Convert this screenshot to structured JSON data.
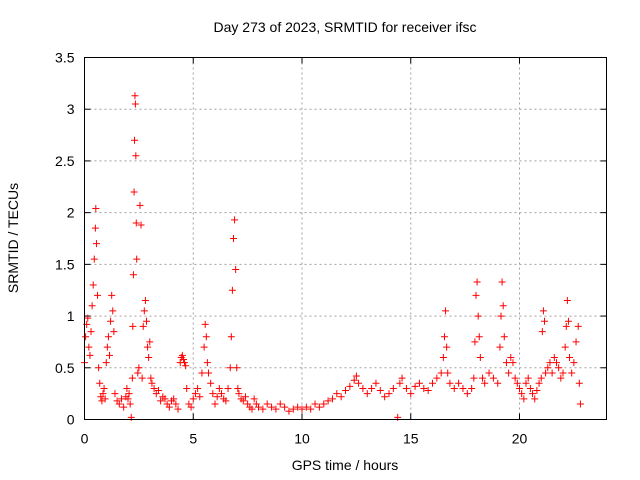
{
  "chart_data": {
    "type": "scatter",
    "title": "Day 273 of 2023, SRMTID for receiver ifsc",
    "xlabel": "GPS time / hours",
    "ylabel": "SRMTID / TECUs",
    "xlim": [
      0,
      24
    ],
    "ylim": [
      0,
      3.5
    ],
    "x_ticks": [
      0,
      5,
      10,
      15,
      20
    ],
    "x_tick_labels": [
      "0",
      "5",
      "10",
      "15",
      "20"
    ],
    "y_ticks": [
      0,
      0.5,
      1,
      1.5,
      2,
      2.5,
      3,
      3.5
    ],
    "y_tick_labels": [
      "0",
      "0.5",
      "1",
      "1.5",
      "2",
      "2.5",
      "3",
      "3.5"
    ],
    "grid": true,
    "marker": "+",
    "color": "#ff0000",
    "series": [
      {
        "name": "SRMTID",
        "points": [
          [
            0.0,
            0.55
          ],
          [
            0.05,
            0.8
          ],
          [
            0.1,
            0.92
          ],
          [
            0.15,
            0.98
          ],
          [
            0.2,
            0.7
          ],
          [
            0.25,
            0.62
          ],
          [
            0.3,
            0.85
          ],
          [
            0.35,
            1.1
          ],
          [
            0.4,
            1.3
          ],
          [
            0.45,
            1.55
          ],
          [
            0.5,
            1.85
          ],
          [
            0.52,
            2.04
          ],
          [
            0.55,
            1.7
          ],
          [
            0.6,
            1.2
          ],
          [
            0.65,
            0.5
          ],
          [
            0.7,
            0.35
          ],
          [
            0.75,
            0.22
          ],
          [
            0.8,
            0.18
          ],
          [
            0.85,
            0.25
          ],
          [
            0.9,
            0.3
          ],
          [
            0.95,
            0.2
          ],
          [
            1.0,
            0.55
          ],
          [
            1.05,
            0.7
          ],
          [
            1.1,
            0.8
          ],
          [
            1.15,
            0.62
          ],
          [
            1.2,
            0.95
          ],
          [
            1.25,
            1.2
          ],
          [
            1.3,
            1.05
          ],
          [
            1.35,
            0.85
          ],
          [
            1.4,
            0.25
          ],
          [
            1.5,
            0.18
          ],
          [
            1.6,
            0.15
          ],
          [
            1.7,
            0.2
          ],
          [
            1.8,
            0.12
          ],
          [
            1.9,
            0.22
          ],
          [
            1.95,
            0.3
          ],
          [
            2.0,
            0.2
          ],
          [
            2.05,
            0.25
          ],
          [
            2.1,
            0.15
          ],
          [
            2.15,
            0.02
          ],
          [
            2.2,
            0.4
          ],
          [
            2.22,
            0.9
          ],
          [
            2.25,
            1.4
          ],
          [
            2.28,
            2.2
          ],
          [
            2.3,
            2.7
          ],
          [
            2.32,
            3.13
          ],
          [
            2.34,
            3.05
          ],
          [
            2.36,
            2.55
          ],
          [
            2.38,
            1.9
          ],
          [
            2.4,
            1.55
          ],
          [
            2.45,
            0.45
          ],
          [
            2.5,
            0.5
          ],
          [
            2.55,
            2.07
          ],
          [
            2.6,
            1.88
          ],
          [
            2.65,
            0.4
          ],
          [
            2.7,
            0.9
          ],
          [
            2.75,
            1.05
          ],
          [
            2.8,
            1.15
          ],
          [
            2.85,
            0.95
          ],
          [
            2.9,
            0.7
          ],
          [
            2.95,
            0.6
          ],
          [
            3.0,
            0.75
          ],
          [
            3.05,
            0.4
          ],
          [
            3.1,
            0.35
          ],
          [
            3.2,
            0.3
          ],
          [
            3.3,
            0.25
          ],
          [
            3.4,
            0.28
          ],
          [
            3.5,
            0.18
          ],
          [
            3.6,
            0.22
          ],
          [
            3.7,
            0.2
          ],
          [
            3.8,
            0.15
          ],
          [
            3.9,
            0.12
          ],
          [
            4.0,
            0.18
          ],
          [
            4.1,
            0.2
          ],
          [
            4.2,
            0.15
          ],
          [
            4.3,
            0.1
          ],
          [
            4.4,
            0.55
          ],
          [
            4.45,
            0.6
          ],
          [
            4.5,
            0.62
          ],
          [
            4.55,
            0.58
          ],
          [
            4.6,
            0.55
          ],
          [
            4.65,
            0.52
          ],
          [
            4.7,
            0.3
          ],
          [
            4.8,
            0.15
          ],
          [
            4.9,
            0.12
          ],
          [
            5.0,
            0.2
          ],
          [
            5.1,
            0.25
          ],
          [
            5.2,
            0.3
          ],
          [
            5.3,
            0.22
          ],
          [
            5.4,
            0.45
          ],
          [
            5.5,
            0.7
          ],
          [
            5.55,
            0.92
          ],
          [
            5.6,
            0.8
          ],
          [
            5.65,
            0.55
          ],
          [
            5.7,
            0.45
          ],
          [
            5.8,
            0.35
          ],
          [
            5.9,
            0.25
          ],
          [
            6.0,
            0.15
          ],
          [
            6.1,
            0.22
          ],
          [
            6.2,
            0.3
          ],
          [
            6.3,
            0.25
          ],
          [
            6.4,
            0.2
          ],
          [
            6.5,
            0.18
          ],
          [
            6.6,
            0.3
          ],
          [
            6.7,
            0.5
          ],
          [
            6.75,
            0.8
          ],
          [
            6.8,
            1.25
          ],
          [
            6.85,
            1.75
          ],
          [
            6.9,
            1.93
          ],
          [
            6.95,
            1.45
          ],
          [
            7.0,
            0.5
          ],
          [
            7.05,
            0.3
          ],
          [
            7.1,
            0.25
          ],
          [
            7.2,
            0.2
          ],
          [
            7.3,
            0.18
          ],
          [
            7.4,
            0.22
          ],
          [
            7.5,
            0.15
          ],
          [
            7.6,
            0.12
          ],
          [
            7.7,
            0.1
          ],
          [
            7.8,
            0.2
          ],
          [
            7.9,
            0.15
          ],
          [
            8.0,
            0.12
          ],
          [
            8.2,
            0.1
          ],
          [
            8.4,
            0.15
          ],
          [
            8.6,
            0.12
          ],
          [
            8.8,
            0.1
          ],
          [
            9.0,
            0.15
          ],
          [
            9.2,
            0.12
          ],
          [
            9.4,
            0.08
          ],
          [
            9.6,
            0.1
          ],
          [
            9.8,
            0.12
          ],
          [
            10.0,
            0.1
          ],
          [
            10.2,
            0.12
          ],
          [
            10.4,
            0.1
          ],
          [
            10.6,
            0.15
          ],
          [
            10.8,
            0.12
          ],
          [
            11.0,
            0.15
          ],
          [
            11.2,
            0.18
          ],
          [
            11.4,
            0.2
          ],
          [
            11.6,
            0.25
          ],
          [
            11.8,
            0.22
          ],
          [
            12.0,
            0.28
          ],
          [
            12.2,
            0.32
          ],
          [
            12.4,
            0.38
          ],
          [
            12.5,
            0.42
          ],
          [
            12.6,
            0.35
          ],
          [
            12.8,
            0.3
          ],
          [
            13.0,
            0.25
          ],
          [
            13.2,
            0.3
          ],
          [
            13.4,
            0.35
          ],
          [
            13.6,
            0.28
          ],
          [
            13.8,
            0.22
          ],
          [
            14.0,
            0.25
          ],
          [
            14.2,
            0.3
          ],
          [
            14.4,
            0.02
          ],
          [
            14.5,
            0.35
          ],
          [
            14.6,
            0.4
          ],
          [
            14.8,
            0.3
          ],
          [
            15.0,
            0.25
          ],
          [
            15.2,
            0.32
          ],
          [
            15.4,
            0.35
          ],
          [
            15.6,
            0.3
          ],
          [
            15.8,
            0.28
          ],
          [
            16.0,
            0.35
          ],
          [
            16.2,
            0.4
          ],
          [
            16.4,
            0.45
          ],
          [
            16.5,
            0.6
          ],
          [
            16.55,
            0.8
          ],
          [
            16.6,
            1.05
          ],
          [
            16.65,
            0.7
          ],
          [
            16.7,
            0.45
          ],
          [
            16.8,
            0.35
          ],
          [
            17.0,
            0.3
          ],
          [
            17.2,
            0.35
          ],
          [
            17.4,
            0.3
          ],
          [
            17.6,
            0.25
          ],
          [
            17.8,
            0.3
          ],
          [
            17.9,
            0.4
          ],
          [
            17.95,
            0.75
          ],
          [
            18.0,
            1.2
          ],
          [
            18.05,
            1.33
          ],
          [
            18.1,
            1.0
          ],
          [
            18.15,
            0.8
          ],
          [
            18.2,
            0.6
          ],
          [
            18.3,
            0.4
          ],
          [
            18.4,
            0.35
          ],
          [
            18.6,
            0.45
          ],
          [
            18.8,
            0.4
          ],
          [
            19.0,
            0.35
          ],
          [
            19.1,
            0.7
          ],
          [
            19.15,
            1.0
          ],
          [
            19.2,
            1.33
          ],
          [
            19.25,
            1.1
          ],
          [
            19.3,
            0.8
          ],
          [
            19.4,
            0.55
          ],
          [
            19.5,
            0.45
          ],
          [
            19.6,
            0.6
          ],
          [
            19.7,
            0.55
          ],
          [
            19.8,
            0.4
          ],
          [
            19.9,
            0.35
          ],
          [
            20.0,
            0.3
          ],
          [
            20.1,
            0.25
          ],
          [
            20.2,
            0.2
          ],
          [
            20.3,
            0.35
          ],
          [
            20.4,
            0.4
          ],
          [
            20.5,
            0.3
          ],
          [
            20.6,
            0.25
          ],
          [
            20.7,
            0.2
          ],
          [
            20.8,
            0.28
          ],
          [
            20.9,
            0.35
          ],
          [
            21.0,
            0.4
          ],
          [
            21.05,
            0.85
          ],
          [
            21.1,
            1.05
          ],
          [
            21.15,
            0.95
          ],
          [
            21.2,
            0.45
          ],
          [
            21.3,
            0.5
          ],
          [
            21.4,
            0.55
          ],
          [
            21.5,
            0.45
          ],
          [
            21.6,
            0.6
          ],
          [
            21.7,
            0.55
          ],
          [
            21.8,
            0.5
          ],
          [
            21.9,
            0.4
          ],
          [
            22.0,
            0.45
          ],
          [
            22.1,
            0.7
          ],
          [
            22.15,
            0.9
          ],
          [
            22.2,
            1.15
          ],
          [
            22.25,
            0.95
          ],
          [
            22.3,
            0.6
          ],
          [
            22.4,
            0.45
          ],
          [
            22.5,
            0.55
          ],
          [
            22.6,
            0.75
          ],
          [
            22.7,
            0.9
          ],
          [
            22.75,
            0.35
          ],
          [
            22.8,
            0.15
          ]
        ]
      }
    ]
  }
}
